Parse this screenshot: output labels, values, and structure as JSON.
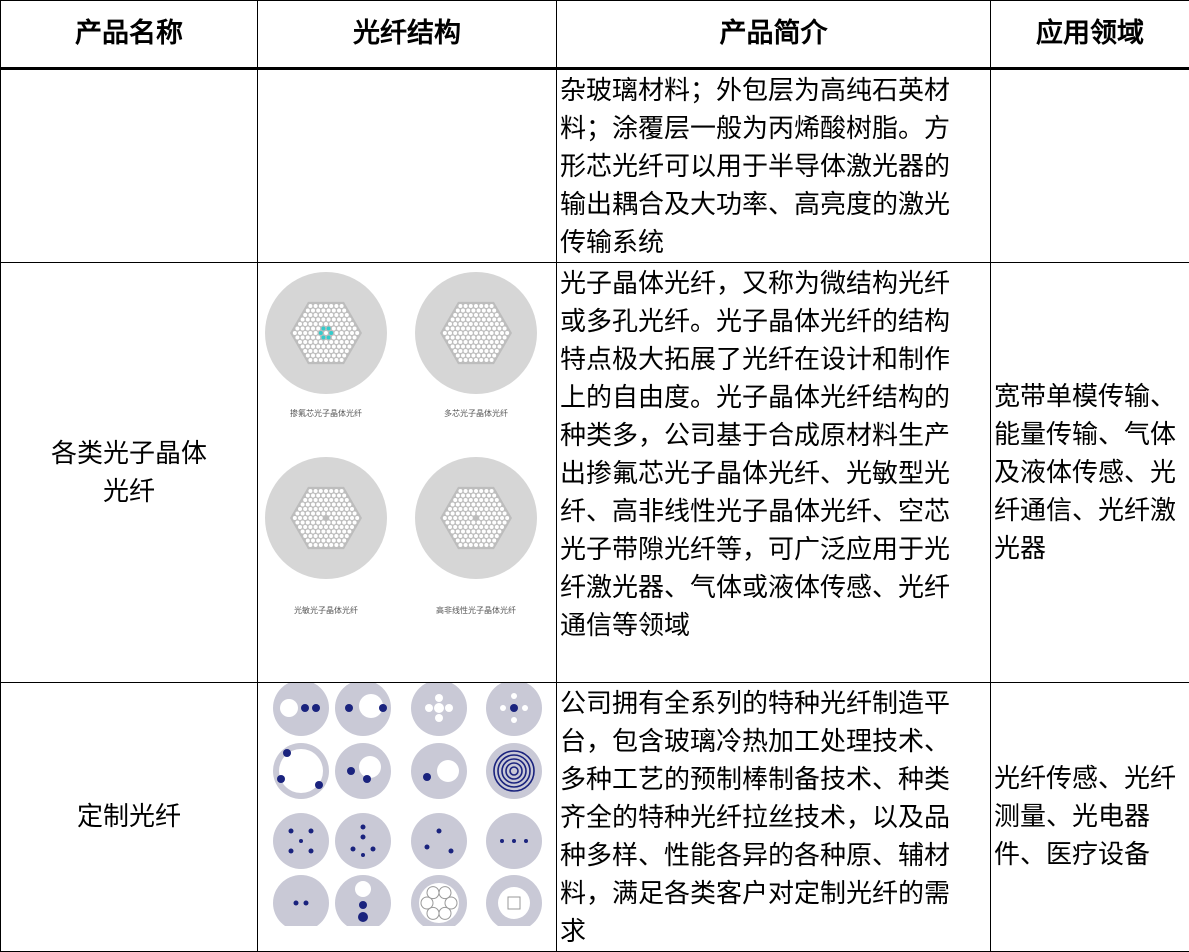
{
  "table": {
    "header": [
      "产品名称",
      "光纤结构",
      "产品简介",
      "应用领域"
    ],
    "rows": [
      {
        "intro": [
          "杂玻璃材料；外包层为高纯石英材",
          "料；涂覆层一般为丙烯酸树脂。方",
          "形芯光纤可以用于半导体激光器的",
          "输出耦合及大功率、高亮度的激光",
          "传输系统"
        ]
      },
      {
        "name": [
          "各类光子晶体",
          "光纤"
        ],
        "captions": [
          "掺氟芯光子晶体光纤",
          "多芯光子晶体光纤",
          "光敏光子晶体光纤",
          "高非线性光子晶体光纤"
        ],
        "intro": [
          "光子晶体光纤，又称为微结构光纤",
          "或多孔光纤。光子晶体光纤的结构",
          "特点极大拓展了光纤在设计和制作",
          "上的自由度。光子晶体光纤结构的",
          "种类多，公司基于合成原材料生产",
          "出掺氟芯光子晶体光纤、光敏型光",
          "纤、高非线性光子晶体光纤、空芯",
          "光子带隙光纤等，可广泛应用于光",
          "纤激光器、气体或液体传感、光纤",
          "通信等领域"
        ],
        "application": [
          "宽带单模传输、",
          "能量传输、气体",
          "及液体传感、光",
          "纤通信、光纤激",
          "光器"
        ]
      },
      {
        "name": [
          "定制光纤"
        ],
        "intro": [
          "公司拥有全系列的特种光纤制造平",
          "台，包含玻璃冷热加工处理技术、",
          "多种工艺的预制棒制备技术、种类",
          "齐全的特种光纤拉丝技术，以及品",
          "种多样、性能各异的各种原、辅材",
          "料，满足各类客户对定制光纤的需",
          "求"
        ],
        "application": [
          "光纤传感、光纤",
          "测量、光电器",
          "件、医疗设备"
        ]
      }
    ]
  }
}
